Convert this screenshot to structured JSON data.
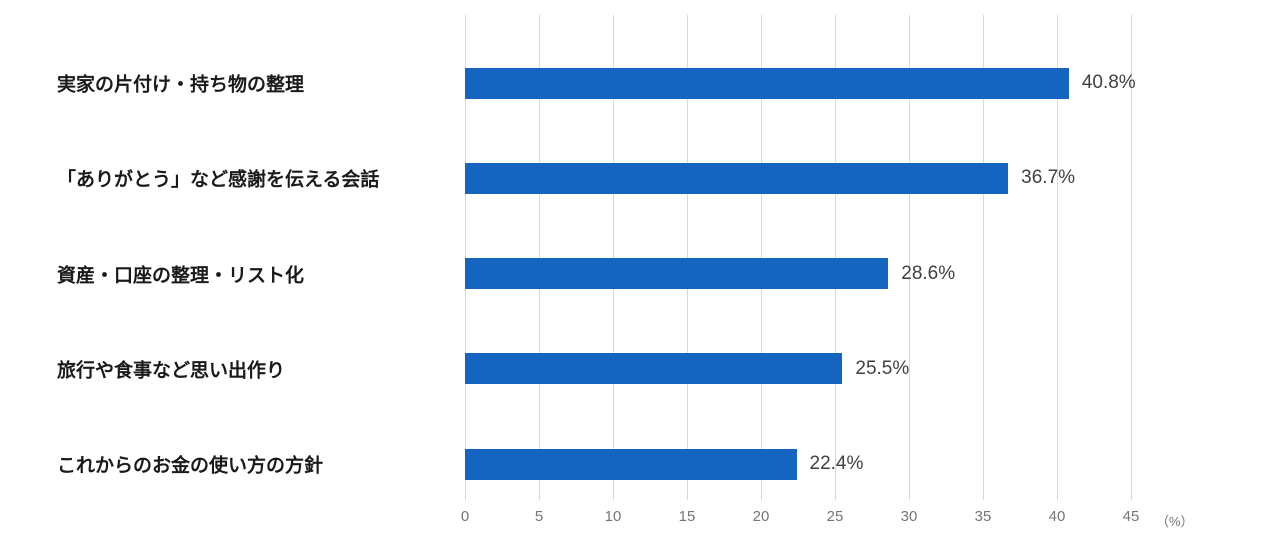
{
  "chart_data": {
    "type": "bar",
    "orientation": "horizontal",
    "title": "",
    "categories": [
      "実家の片付け・持ち物の整理",
      "「ありがとう」など感謝を伝える会話",
      "資産・口座の整理・リスト化",
      "旅行や食事など思い出作り",
      "これからのお金の使い方の方針"
    ],
    "values": [
      40.8,
      36.7,
      28.6,
      25.5,
      22.4
    ],
    "value_labels": [
      "40.8%",
      "36.7%",
      "28.6%",
      "25.5%",
      "22.4%"
    ],
    "xlim": [
      0,
      45
    ],
    "x_ticks": [
      0,
      5,
      10,
      15,
      20,
      25,
      30,
      35,
      40,
      45
    ],
    "x_unit_label": "（%）",
    "grid": true,
    "legend": "none",
    "bar_color": "#1565c0",
    "gridline_color": "#d9d9d9",
    "tick_label_color": "#757575",
    "category_label_color": "#1a1a1a",
    "value_label_color": "#404040"
  }
}
